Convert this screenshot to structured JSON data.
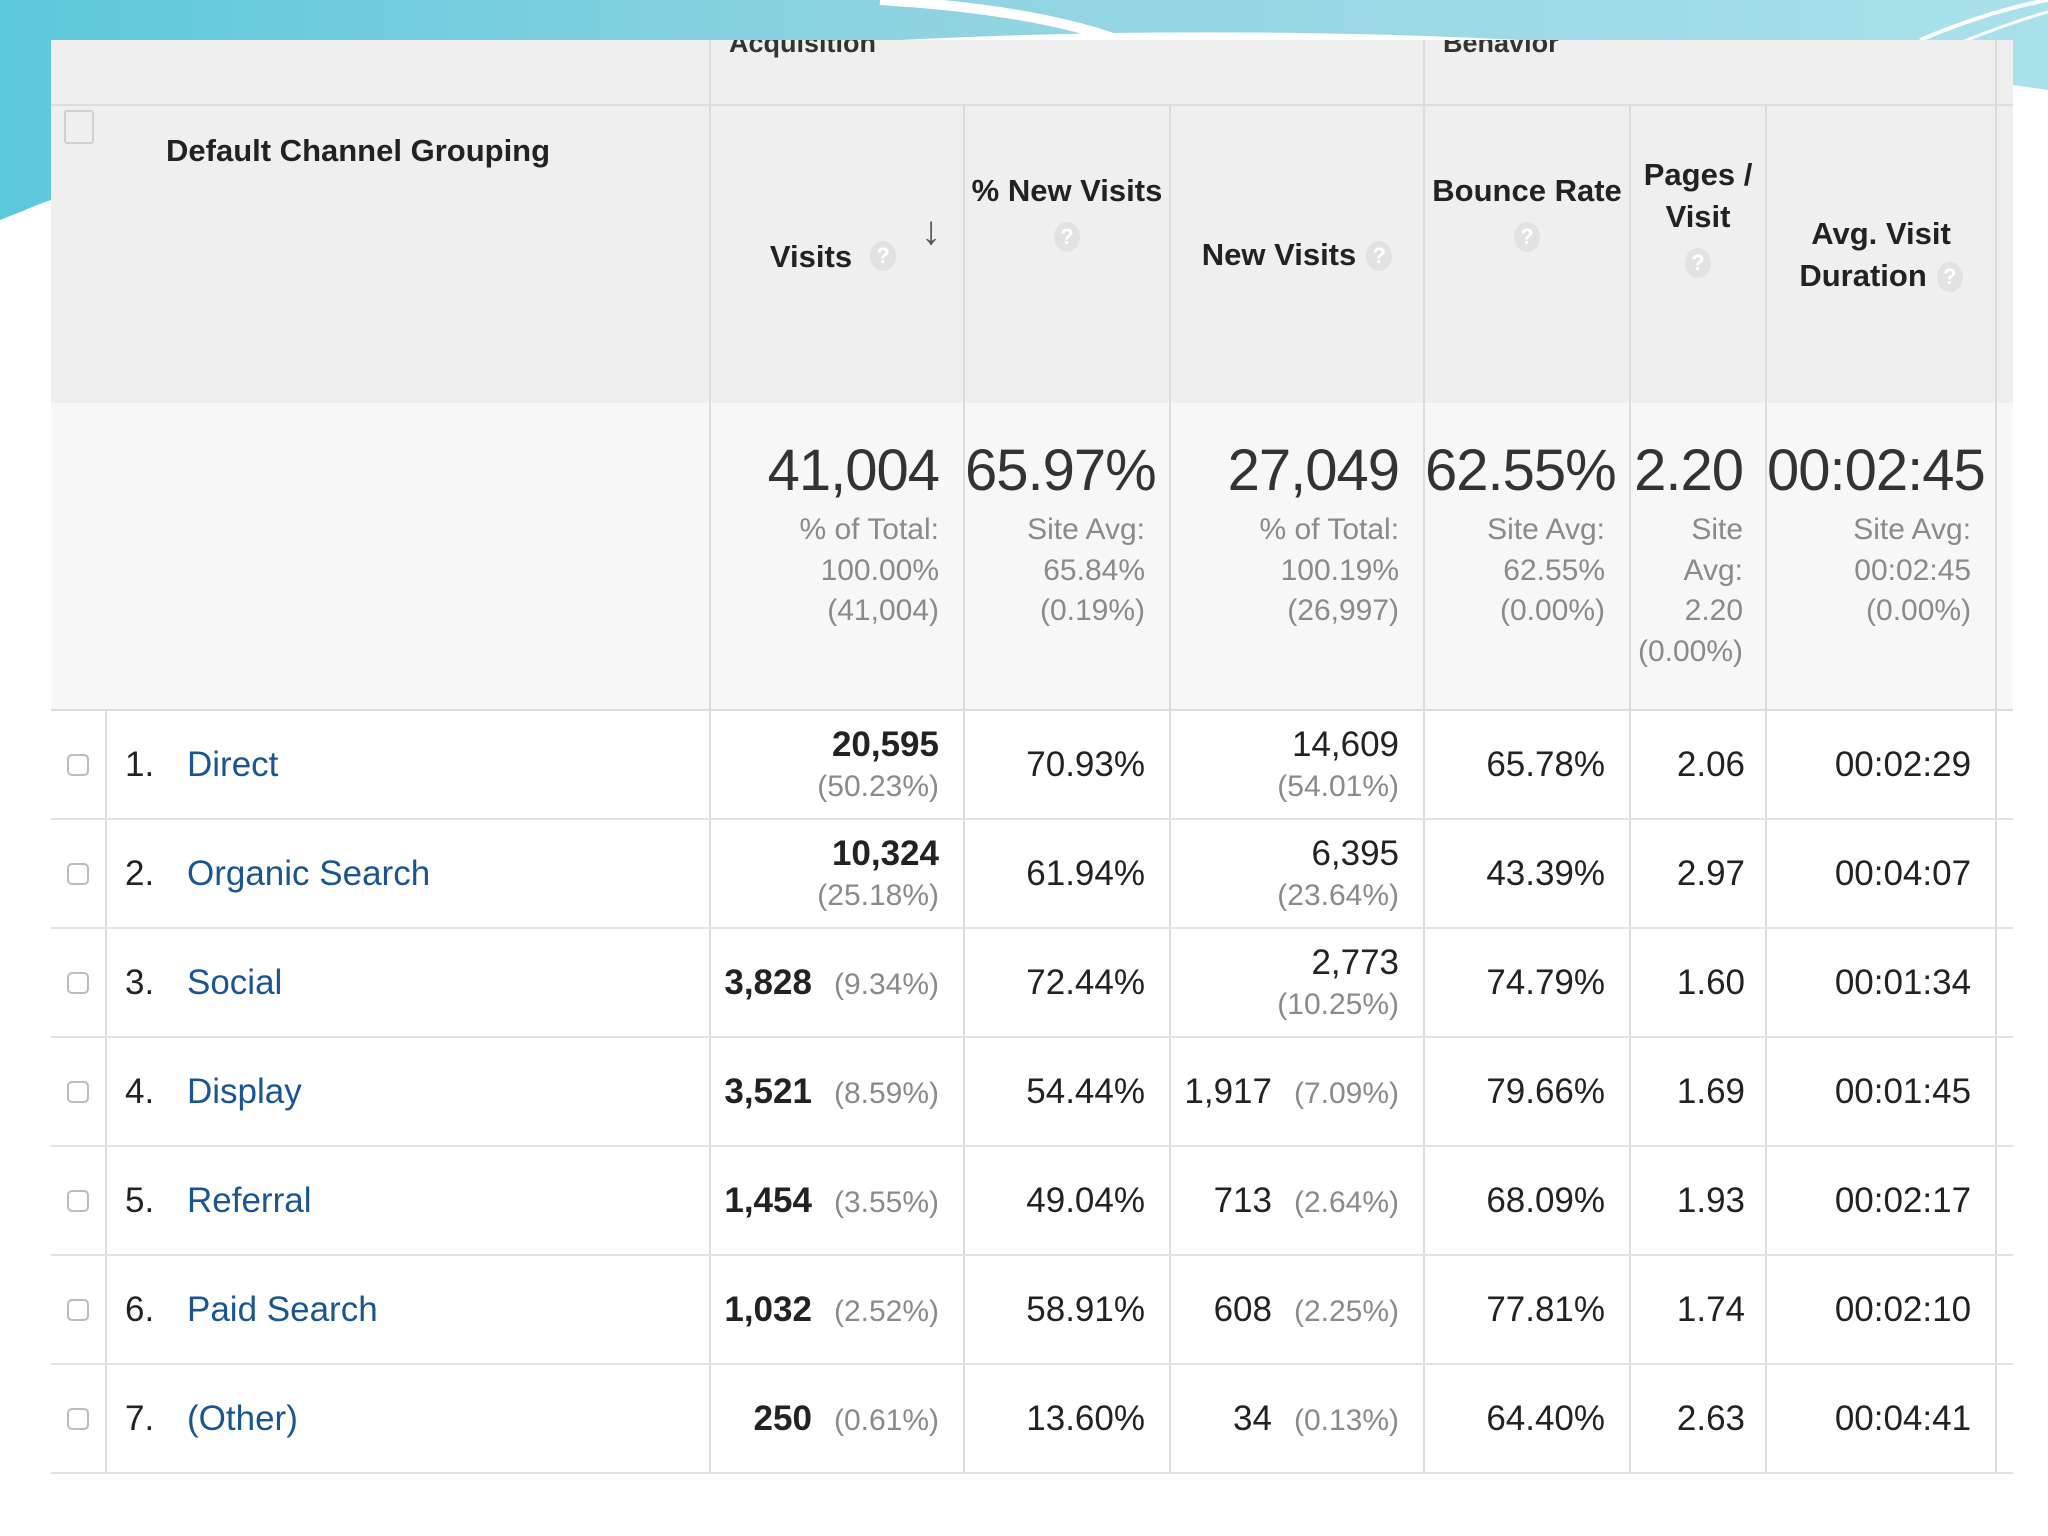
{
  "table": {
    "group_headers": [
      "Acquisition",
      "Behavior"
    ],
    "columns": {
      "dimension": "Default Channel Grouping",
      "visits": "Visits",
      "pct_new_visits": "% New Visits",
      "new_visits": "New Visits",
      "bounce_rate": "Bounce Rate",
      "pages_per_visit": "Pages / Visit",
      "avg_visit_duration": "Avg. Visit Duration"
    },
    "help_icon": "?",
    "sort_icon": "↓",
    "totals": {
      "visits": {
        "value": "41,004",
        "sub": [
          "% of Total:",
          "100.00% (41,004)"
        ]
      },
      "pct_new_visits": {
        "value": "65.97%",
        "sub": [
          "Site Avg:",
          "65.84%",
          "(0.19%)"
        ]
      },
      "new_visits": {
        "value": "27,049",
        "sub": [
          "% of Total:",
          "100.19% (26,997)"
        ]
      },
      "bounce_rate": {
        "value": "62.55%",
        "sub": [
          "Site Avg:",
          "62.55%",
          "(0.00%)"
        ]
      },
      "pages_per_visit": {
        "value": "2.20",
        "sub": [
          "Site",
          "Avg:",
          "2.20",
          "(0.00%)"
        ]
      },
      "avg_visit_duration": {
        "value": "00:02:45",
        "sub": [
          "Site Avg:",
          "00:02:45",
          "(0.00%)"
        ]
      }
    },
    "rows": [
      {
        "rank": "1.",
        "channel": "Direct",
        "visits": "20,595",
        "visits_pct": "(50.23%)",
        "pct_new": "70.93%",
        "new_visits": "14,609",
        "new_pct": "(54.01%)",
        "bounce": "65.78%",
        "pages": "2.06",
        "duration": "00:02:29"
      },
      {
        "rank": "2.",
        "channel": "Organic Search",
        "visits": "10,324",
        "visits_pct": "(25.18%)",
        "pct_new": "61.94%",
        "new_visits": "6,395",
        "new_pct": "(23.64%)",
        "bounce": "43.39%",
        "pages": "2.97",
        "duration": "00:04:07"
      },
      {
        "rank": "3.",
        "channel": "Social",
        "visits": "3,828",
        "visits_pct": "(9.34%)",
        "pct_new": "72.44%",
        "new_visits": "2,773",
        "new_pct": "(10.25%)",
        "bounce": "74.79%",
        "pages": "1.60",
        "duration": "00:01:34"
      },
      {
        "rank": "4.",
        "channel": "Display",
        "visits": "3,521",
        "visits_pct": "(8.59%)",
        "pct_new": "54.44%",
        "new_visits": "1,917",
        "new_pct": "(7.09%)",
        "bounce": "79.66%",
        "pages": "1.69",
        "duration": "00:01:45"
      },
      {
        "rank": "5.",
        "channel": "Referral",
        "visits": "1,454",
        "visits_pct": "(3.55%)",
        "pct_new": "49.04%",
        "new_visits": "713",
        "new_pct": "(2.64%)",
        "bounce": "68.09%",
        "pages": "1.93",
        "duration": "00:02:17"
      },
      {
        "rank": "6.",
        "channel": "Paid Search",
        "visits": "1,032",
        "visits_pct": "(2.52%)",
        "pct_new": "58.91%",
        "new_visits": "608",
        "new_pct": "(2.25%)",
        "bounce": "77.81%",
        "pages": "1.74",
        "duration": "00:02:10"
      },
      {
        "rank": "7.",
        "channel": "(Other)",
        "visits": "250",
        "visits_pct": "(0.61%)",
        "pct_new": "13.60%",
        "new_visits": "34",
        "new_pct": "(0.13%)",
        "bounce": "64.40%",
        "pages": "2.63",
        "duration": "00:04:41"
      }
    ]
  },
  "colors": {
    "link": "#1a5592",
    "header_bg": "#efefef",
    "muted_text": "#8a8a8a",
    "deco_teal": "#8fd3e0"
  }
}
